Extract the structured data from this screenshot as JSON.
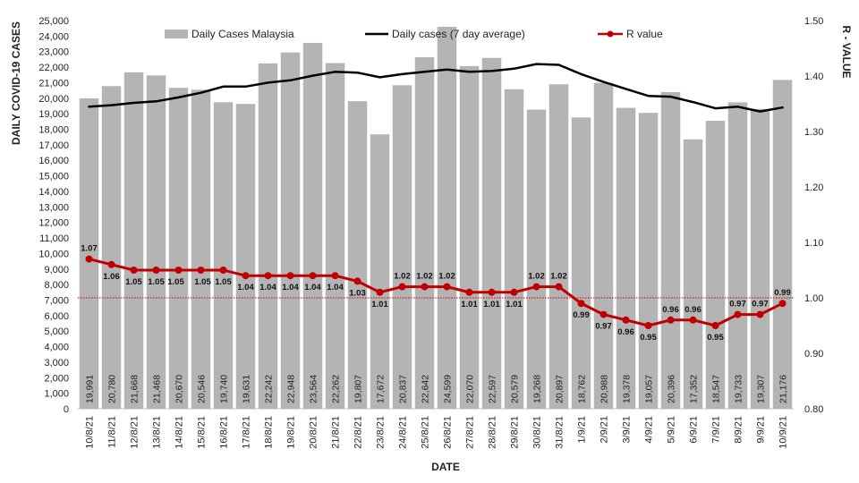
{
  "chart_data": {
    "type": "bar",
    "ylabel": "DAILY COVID-19 CASES",
    "y2label": "R - VALUE",
    "xlabel": "DATE",
    "ylim": [
      0,
      25000
    ],
    "ystep": 1000,
    "y2lim": [
      0.8,
      1.5
    ],
    "y2step": 0.1,
    "reference_line": 1.0,
    "colors": {
      "bars": "#b4b4b4",
      "average": "#000000",
      "r": "#c00000",
      "reference": "#c00000"
    },
    "categories": [
      "10/8/21",
      "11/8/21",
      "12/8/21",
      "13/8/21",
      "14/8/21",
      "15/8/21",
      "16/8/21",
      "17/8/21",
      "18/8/21",
      "19/8/21",
      "20/8/21",
      "21/8/21",
      "22/8/21",
      "23/8/21",
      "24/8/21",
      "25/8/21",
      "26/8/21",
      "27/8/21",
      "28/8/21",
      "29/8/21",
      "30/8/21",
      "31/8/21",
      "1/9/21",
      "2/9/21",
      "3/9/21",
      "4/9/21",
      "5/9/21",
      "6/9/21",
      "7/9/21",
      "8/9/21",
      "9/9/21",
      "10/9/21"
    ],
    "series": [
      {
        "name": "Daily Cases Malaysia",
        "kind": "bar",
        "values": [
          19991,
          20780,
          21668,
          21468,
          20670,
          20546,
          19740,
          19631,
          22242,
          22948,
          23564,
          22262,
          19807,
          17672,
          20837,
          22642,
          24599,
          22070,
          22597,
          20579,
          19268,
          20897,
          18762,
          20988,
          19378,
          19057,
          20396,
          17352,
          18547,
          19733,
          19307,
          21176
        ],
        "labels": [
          "19,991",
          "20,780",
          "21,668",
          "21,468",
          "20,670",
          "20,546",
          "19,740",
          "19,631",
          "22,242",
          "22,948",
          "23,564",
          "22,262",
          "19,807",
          "17,672",
          "20,837",
          "22,642",
          "24,599",
          "22,070",
          "22,597",
          "20,579",
          "19,268",
          "20,897",
          "18,762",
          "20,988",
          "19,378",
          "19,057",
          "20,396",
          "17,352",
          "18,547",
          "19,733",
          "19,307",
          "21,176"
        ]
      },
      {
        "name": "Daily cases (7 day average)",
        "kind": "line",
        "values": [
          19450,
          19550,
          19700,
          19800,
          20050,
          20350,
          20750,
          20750,
          21000,
          21150,
          21450,
          21700,
          21650,
          21350,
          21550,
          21700,
          21850,
          21700,
          21750,
          21900,
          22200,
          22150,
          21550,
          21050,
          20600,
          20150,
          20100,
          19750,
          19350,
          19450,
          19150,
          19400
        ]
      },
      {
        "name": "R value",
        "kind": "line-secondary",
        "values": [
          1.07,
          1.06,
          1.05,
          1.05,
          1.05,
          1.05,
          1.05,
          1.04,
          1.04,
          1.04,
          1.04,
          1.04,
          1.03,
          1.01,
          1.02,
          1.02,
          1.02,
          1.01,
          1.01,
          1.01,
          1.02,
          1.02,
          0.99,
          0.97,
          0.96,
          0.95,
          0.96,
          0.96,
          0.95,
          0.97,
          0.97,
          0.99
        ],
        "labels": [
          "1.07",
          "1.06",
          "1.05",
          "1.05",
          "1.05",
          "1.05",
          "1.05",
          "1.04",
          "1.04",
          "1.04",
          "1.04",
          "1.04",
          "1.03",
          "1.01",
          "1.02",
          "1.02",
          "1.02",
          "1.01",
          "1.01",
          "1.01",
          "1.02",
          "1.02",
          "0.99",
          "0.97",
          "0.96",
          "0.95",
          "0.96",
          "0.96",
          "0.95",
          "0.97",
          "0.97",
          "0.99"
        ]
      }
    ]
  }
}
